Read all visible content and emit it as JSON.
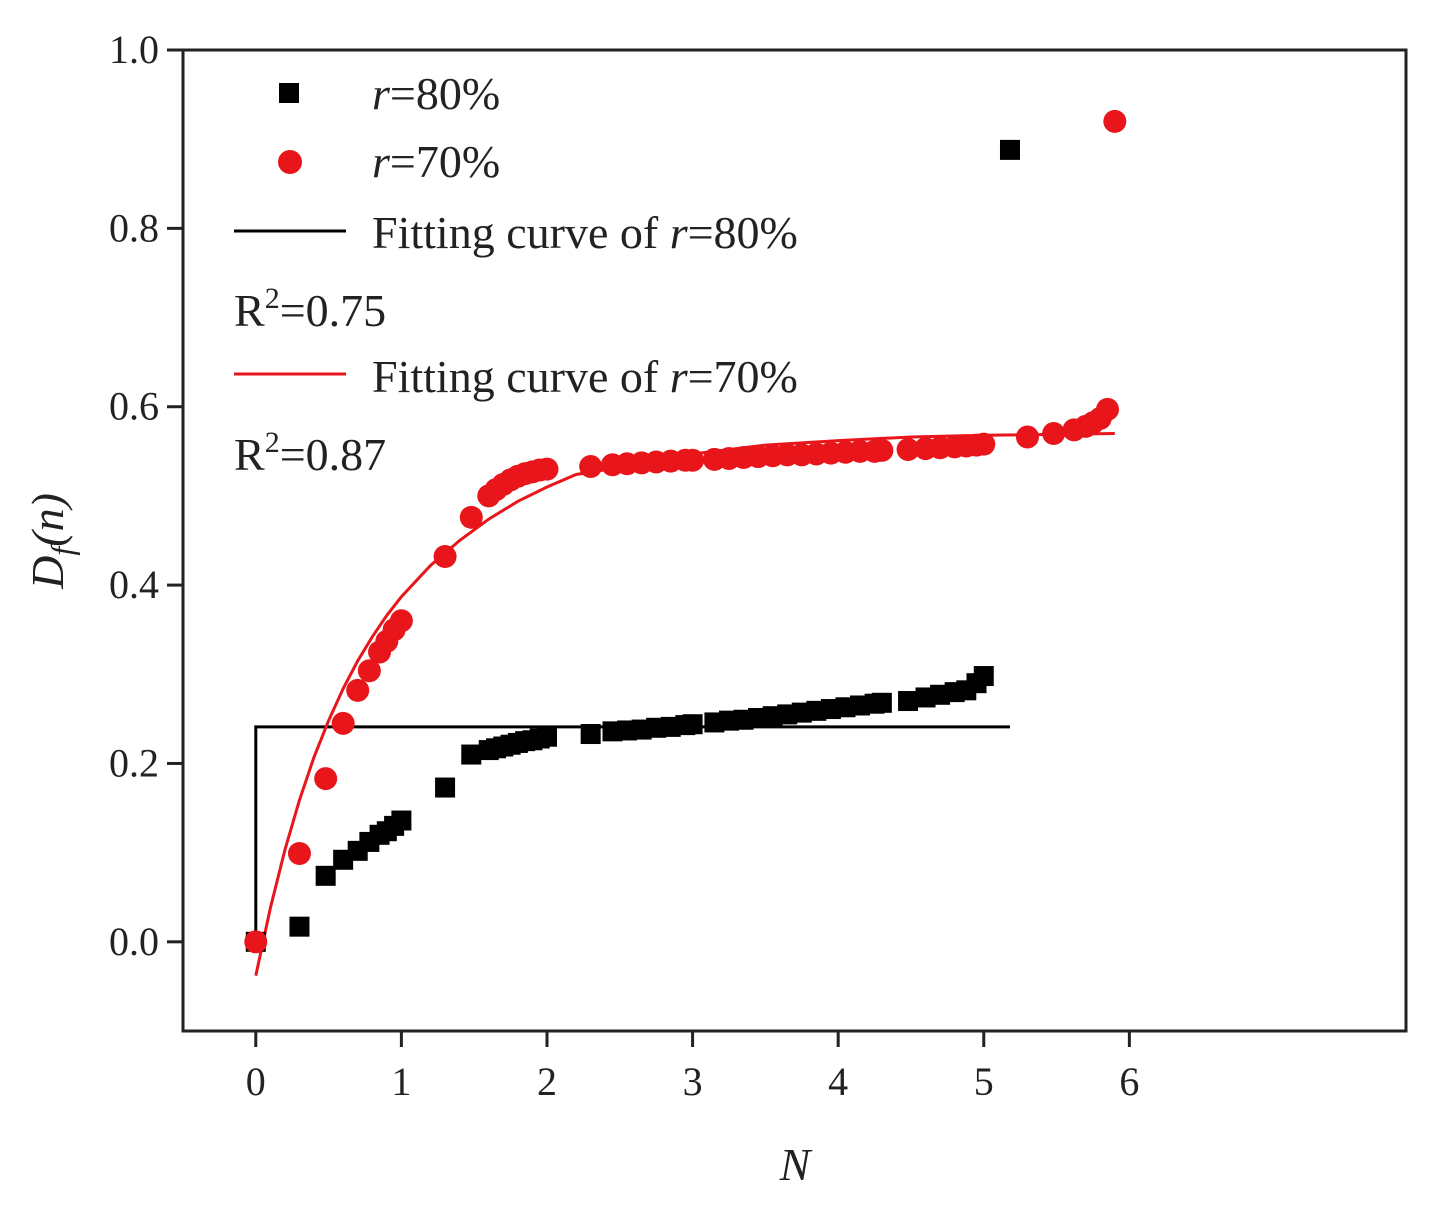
{
  "chart_data": {
    "type": "scatter",
    "title": "",
    "xlabel": "N",
    "ylabel": "D",
    "ylabel_sub": "f",
    "ylabel_tail": "(n)",
    "xlim": [
      -0.5,
      7.9
    ],
    "ylim": [
      -0.1,
      1.0
    ],
    "xticks": [
      0,
      1,
      2,
      3,
      4,
      5,
      6
    ],
    "yticks": [
      0.0,
      0.2,
      0.4,
      0.6,
      0.8,
      1.0
    ],
    "xtick_labels": [
      "0",
      "1",
      "2",
      "3",
      "4",
      "5",
      "6"
    ],
    "ytick_labels": [
      "0.0",
      "0.2",
      "0.4",
      "0.6",
      "0.8",
      "1.0"
    ],
    "grid": false,
    "legend_position": "top-left",
    "series": [
      {
        "name": "r=80%",
        "name_italic": "r",
        "name_rest": "=80%",
        "marker": "square",
        "color": "#000000",
        "x": [
          0,
          0.3,
          0.48,
          0.6,
          0.7,
          0.78,
          0.85,
          0.9,
          0.95,
          1.0,
          1.3,
          1.48,
          1.6,
          1.65,
          1.7,
          1.75,
          1.8,
          1.85,
          1.9,
          1.95,
          2.0,
          2.3,
          2.45,
          2.55,
          2.65,
          2.75,
          2.85,
          2.95,
          3.0,
          3.15,
          3.25,
          3.35,
          3.45,
          3.55,
          3.65,
          3.75,
          3.85,
          3.95,
          4.05,
          4.15,
          4.25,
          4.3,
          4.48,
          4.6,
          4.7,
          4.8,
          4.88,
          4.95,
          5.0,
          5.18
        ],
        "y": [
          0.0,
          0.017,
          0.074,
          0.092,
          0.102,
          0.112,
          0.12,
          0.124,
          0.13,
          0.136,
          0.173,
          0.21,
          0.215,
          0.217,
          0.219,
          0.221,
          0.223,
          0.225,
          0.226,
          0.228,
          0.23,
          0.233,
          0.236,
          0.237,
          0.238,
          0.24,
          0.241,
          0.243,
          0.244,
          0.246,
          0.248,
          0.249,
          0.251,
          0.253,
          0.255,
          0.257,
          0.259,
          0.261,
          0.263,
          0.265,
          0.267,
          0.268,
          0.27,
          0.274,
          0.277,
          0.28,
          0.282,
          0.29,
          0.298,
          0.888
        ]
      },
      {
        "name": "r=70%",
        "name_italic": "r",
        "name_rest": "=70%",
        "marker": "circle",
        "color": "#e8161b",
        "x": [
          0,
          0.3,
          0.48,
          0.6,
          0.7,
          0.78,
          0.85,
          0.9,
          0.95,
          1.0,
          1.3,
          1.48,
          1.6,
          1.65,
          1.7,
          1.75,
          1.8,
          1.85,
          1.9,
          1.95,
          2.0,
          2.3,
          2.45,
          2.55,
          2.65,
          2.75,
          2.85,
          2.95,
          3.0,
          3.15,
          3.25,
          3.35,
          3.45,
          3.55,
          3.65,
          3.75,
          3.85,
          3.95,
          4.05,
          4.15,
          4.25,
          4.3,
          4.48,
          4.6,
          4.7,
          4.8,
          4.88,
          4.95,
          5.0,
          5.3,
          5.48,
          5.62,
          5.7,
          5.75,
          5.8,
          5.85,
          5.9
        ],
        "y": [
          0.0,
          0.099,
          0.183,
          0.245,
          0.282,
          0.304,
          0.325,
          0.337,
          0.35,
          0.36,
          0.432,
          0.476,
          0.5,
          0.507,
          0.513,
          0.518,
          0.522,
          0.525,
          0.527,
          0.529,
          0.53,
          0.533,
          0.535,
          0.536,
          0.537,
          0.538,
          0.539,
          0.54,
          0.54,
          0.541,
          0.542,
          0.543,
          0.544,
          0.545,
          0.546,
          0.546,
          0.547,
          0.548,
          0.549,
          0.55,
          0.55,
          0.551,
          0.552,
          0.553,
          0.554,
          0.555,
          0.556,
          0.557,
          0.558,
          0.566,
          0.57,
          0.574,
          0.578,
          0.582,
          0.587,
          0.597,
          0.92
        ]
      }
    ],
    "fits": [
      {
        "name": "Fitting curve of r=80%",
        "name_pre": "Fitting curve of ",
        "name_italic": "r",
        "name_rest": "=80%",
        "r2": "R",
        "r2_sup": "2",
        "r2_val": "=0.75",
        "color": "#000000",
        "x": [
          0,
          0,
          5.18
        ],
        "y": [
          0.0,
          0.241,
          0.241
        ]
      },
      {
        "name": "Fitting curve of r=70%",
        "name_pre": "Fitting curve of ",
        "name_italic": "r",
        "name_rest": "=70%",
        "r2": "R",
        "r2_sup": "2",
        "r2_val": "=0.87",
        "color": "#e8161b",
        "x": [
          0,
          0.1,
          0.2,
          0.3,
          0.4,
          0.5,
          0.6,
          0.7,
          0.8,
          0.9,
          1.0,
          1.2,
          1.4,
          1.6,
          1.8,
          2.0,
          2.2,
          2.5,
          3.0,
          3.5,
          4.0,
          4.5,
          5.0,
          5.5,
          5.9
        ],
        "y": [
          -0.038,
          0.038,
          0.103,
          0.159,
          0.207,
          0.248,
          0.284,
          0.315,
          0.342,
          0.366,
          0.387,
          0.422,
          0.45,
          0.474,
          0.494,
          0.51,
          0.524,
          0.532,
          0.547,
          0.557,
          0.562,
          0.566,
          0.568,
          0.569,
          0.57
        ]
      }
    ]
  }
}
